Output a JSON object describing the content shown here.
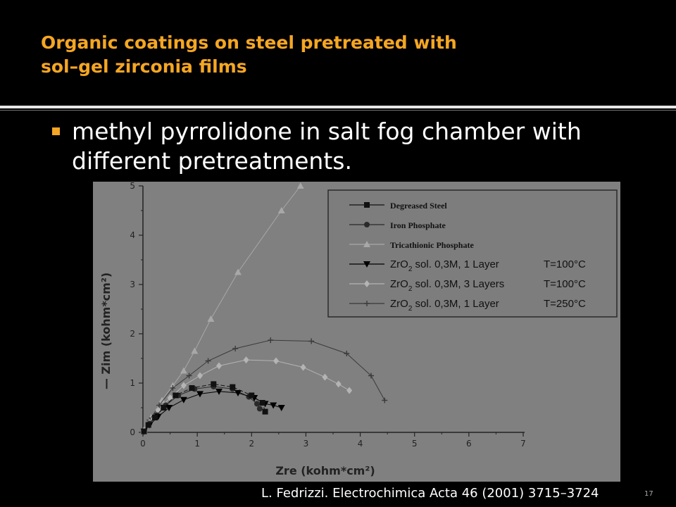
{
  "slide": {
    "title_line1": "Organic coatings on steel pretreated with",
    "title_line2": "sol–gel zirconia films",
    "bullet": "methyl pyrrolidone in salt fog chamber with different pretreatments.",
    "caption": "L. Fedrizzi. Electrochimica Acta 46 (2001) 3715–3724",
    "page_number": "17"
  },
  "colors": {
    "title": "#f5a623",
    "bullet": "#f5a623",
    "chart_bg": "#808080",
    "legend_bg": "#7d7d7d"
  },
  "chart_data": {
    "type": "scatter",
    "xlabel": "Zre (kohm*cm²)",
    "ylabel": "— Zim (kohm*cm²)",
    "xlim": [
      0,
      7
    ],
    "ylim": [
      0,
      5
    ],
    "xticks": [
      "0",
      "1",
      "2",
      "3",
      "4",
      "5",
      "6",
      "7"
    ],
    "yticks": [
      "0",
      "1",
      "2",
      "3",
      "4",
      "5"
    ],
    "grid": false,
    "legend_position": "top-right",
    "series": [
      {
        "name": "Degreased Steel",
        "name_main": "Degreased Steel",
        "name_sub": "",
        "name_tail": "",
        "name_tail2": "",
        "marker": "square",
        "color": "#111111",
        "dash": "6,3",
        "x": [
          0.02,
          0.1,
          0.22,
          0.38,
          0.6,
          0.9,
          1.3,
          1.65,
          2.0,
          2.2,
          2.25
        ],
        "y": [
          0.02,
          0.15,
          0.3,
          0.5,
          0.75,
          0.9,
          0.98,
          0.92,
          0.75,
          0.6,
          0.42
        ]
      },
      {
        "name": "Iron Phosphate",
        "name_main": "Iron Phosphate",
        "name_sub": "",
        "name_tail": "",
        "name_tail2": "",
        "marker": "circle",
        "color": "#2a2a2a",
        "dash": "",
        "x": [
          0.02,
          0.12,
          0.25,
          0.42,
          0.65,
          0.95,
          1.3,
          1.65,
          1.95,
          2.1,
          2.15
        ],
        "y": [
          0.02,
          0.18,
          0.35,
          0.55,
          0.75,
          0.88,
          0.93,
          0.88,
          0.72,
          0.58,
          0.48
        ]
      },
      {
        "name": "Tricathionic Phosphate",
        "name_main": "Tricathionic Phosphate",
        "name_sub": "",
        "name_tail": "",
        "name_tail2": "",
        "marker": "triangle",
        "color": "#a8a8a8",
        "dash": "",
        "x": [
          0.02,
          0.15,
          0.35,
          0.55,
          0.75,
          0.95,
          1.25,
          1.75,
          2.55,
          2.9
        ],
        "y": [
          0.05,
          0.3,
          0.65,
          0.95,
          1.25,
          1.65,
          2.3,
          3.25,
          4.5,
          5.0
        ]
      },
      {
        "name": "ZrO2 sol. 0,3M, 1 Layer T=100°C",
        "name_main": "ZrO",
        "name_sub": "2",
        "name_tail": " sol. 0,3M, 1 Layer",
        "name_tail2": "T=100°C",
        "marker": "triangle-down",
        "color": "#000000",
        "dash": "",
        "x": [
          0.02,
          0.12,
          0.28,
          0.48,
          0.75,
          1.05,
          1.4,
          1.75,
          2.05,
          2.25,
          2.4,
          2.55
        ],
        "y": [
          0.02,
          0.15,
          0.32,
          0.5,
          0.66,
          0.78,
          0.83,
          0.8,
          0.7,
          0.58,
          0.55,
          0.5
        ]
      },
      {
        "name": "ZrO2 sol. 0,3M, 3 Layers T=100°C",
        "name_main": "ZrO",
        "name_sub": "2",
        "name_tail": " sol. 0,3M, 3 Layers",
        "name_tail2": "T=100°C",
        "marker": "diamond",
        "color": "#b4b4b4",
        "dash": "",
        "x": [
          0.02,
          0.12,
          0.28,
          0.5,
          0.75,
          1.05,
          1.4,
          1.9,
          2.45,
          2.95,
          3.35,
          3.6,
          3.8
        ],
        "y": [
          0.02,
          0.2,
          0.45,
          0.7,
          0.95,
          1.15,
          1.35,
          1.47,
          1.45,
          1.32,
          1.12,
          0.98,
          0.85
        ]
      },
      {
        "name": "ZrO2 sol. 0,3M, 1 Layer T=250°C",
        "name_main": "ZrO",
        "name_sub": "2",
        "name_tail": " sol. 0,3M, 1 Layer",
        "name_tail2": "T=250°C",
        "marker": "plus",
        "color": "#3a3a3a",
        "dash": "",
        "x": [
          0.02,
          0.12,
          0.3,
          0.55,
          0.85,
          1.2,
          1.7,
          2.35,
          3.1,
          3.75,
          4.2,
          4.45
        ],
        "y": [
          0.02,
          0.25,
          0.55,
          0.9,
          1.15,
          1.45,
          1.7,
          1.87,
          1.85,
          1.6,
          1.15,
          0.65
        ]
      }
    ]
  }
}
